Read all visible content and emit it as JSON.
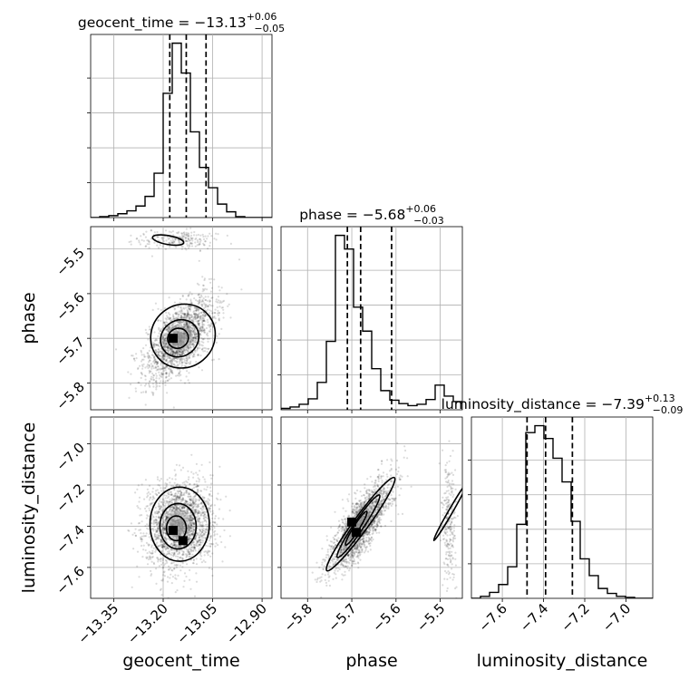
{
  "chart_data": {
    "type": "corner",
    "parameters": [
      {
        "key": "geocent_time",
        "label": "geocent_time",
        "title": {
          "prefix": "geocent_time = ",
          "median": "−13.13",
          "plus": "+0.06",
          "minus": "−0.05"
        },
        "ticks": [
          -13.35,
          -13.2,
          -13.05,
          -12.9
        ],
        "tick_labels": [
          "−13.35",
          "−13.20",
          "−13.05",
          "−12.90"
        ],
        "range": [
          -13.42,
          -12.87
        ],
        "quantiles": [
          -13.18,
          -13.13,
          -13.07
        ],
        "hist_bins": [
          -13.42,
          -13.3925,
          -13.365,
          -13.3375,
          -13.31,
          -13.2825,
          -13.255,
          -13.2275,
          -13.2,
          -13.1725,
          -13.145,
          -13.1175,
          -13.09,
          -13.0625,
          -13.035,
          -13.0075,
          -12.98,
          -12.9525,
          -12.925,
          -12.8975,
          -12.87
        ],
        "hist_counts": [
          0,
          1,
          2,
          4,
          7,
          12,
          22,
          46,
          129,
          181,
          150,
          89,
          52,
          31,
          14,
          6,
          1,
          0,
          0,
          0
        ]
      },
      {
        "key": "phase",
        "label": "phase",
        "title": {
          "prefix": "phase = ",
          "median": "−5.68",
          "plus": "+0.06",
          "minus": "−0.03"
        },
        "ticks": [
          -5.8,
          -5.7,
          -5.6,
          -5.5
        ],
        "tick_labels": [
          "−5.8",
          "−5.7",
          "−5.6",
          "−5.5"
        ],
        "range": [
          -5.86,
          -5.45
        ],
        "quantiles": [
          -5.71,
          -5.68,
          -5.61
        ],
        "hist_bins": [
          -5.86,
          -5.8395,
          -5.819,
          -5.7985,
          -5.778,
          -5.7575,
          -5.737,
          -5.7165,
          -5.696,
          -5.6755,
          -5.655,
          -5.6345,
          -5.614,
          -5.5935,
          -5.573,
          -5.5525,
          -5.532,
          -5.5115,
          -5.491,
          -5.4705,
          -5.45
        ],
        "hist_counts": [
          2,
          4,
          8,
          16,
          40,
          100,
          255,
          235,
          150,
          115,
          60,
          28,
          14,
          9,
          6,
          8,
          15,
          36,
          20,
          12
        ]
      },
      {
        "key": "luminosity_distance",
        "label": "luminosity_distance",
        "title": {
          "prefix": "luminosity_distance = ",
          "median": "−7.39",
          "plus": "+0.13",
          "minus": "−0.09"
        },
        "ticks": [
          -7.6,
          -7.4,
          -7.2,
          -7.0
        ],
        "tick_labels": [
          "−7.6",
          "−7.4",
          "−7.2",
          "−7.0"
        ],
        "y_ticks": [
          -7.6,
          -7.4,
          -7.2,
          -7.0
        ],
        "y_tick_labels": [
          "−7.6",
          "−7.4",
          "−7.2",
          "−7.0"
        ],
        "range": [
          -7.75,
          -6.87
        ],
        "quantiles": [
          -7.48,
          -7.39,
          -7.26
        ],
        "hist_bins": [
          -7.75,
          -7.706,
          -7.662,
          -7.618,
          -7.574,
          -7.53,
          -7.486,
          -7.442,
          -7.398,
          -7.354,
          -7.31,
          -7.266,
          -7.222,
          -7.178,
          -7.134,
          -7.09,
          -7.046,
          -7.002,
          -6.958,
          -6.914,
          -6.87
        ],
        "hist_counts": [
          0,
          2,
          6,
          14,
          32,
          75,
          168,
          175,
          162,
          142,
          118,
          78,
          40,
          23,
          10,
          5,
          2,
          1,
          0,
          0
        ]
      }
    ],
    "panels_2d": [
      {
        "x": "geocent_time",
        "y": "phase",
        "modes": [
          {
            "mean": [
              -13.15,
              -5.7
            ],
            "sd": [
              0.05,
              0.045
            ],
            "rho": 0.6,
            "weight": 0.9
          },
          {
            "mean": [
              -13.15,
              -5.48
            ],
            "sd": [
              0.06,
              0.01
            ],
            "rho": 0.0,
            "weight": 0.1
          }
        ],
        "contours": [
          {
            "level": "inner",
            "center": [
              -13.155,
              -5.7
            ],
            "rx": 0.032,
            "ry": 0.022,
            "angle_deg": 32
          },
          {
            "level": "middle",
            "center": [
              -13.15,
              -5.7
            ],
            "rx": 0.06,
            "ry": 0.04,
            "angle_deg": 36
          },
          {
            "level": "outer",
            "center": [
              -13.14,
              -5.695
            ],
            "rx": 0.1,
            "ry": 0.07,
            "angle_deg": 40
          },
          {
            "level": "outer",
            "center": [
              -13.185,
              -5.48
            ],
            "rx": 0.048,
            "ry": 0.01,
            "angle_deg": -10
          }
        ],
        "peak_cells": [
          [
            -13.17,
            -5.7
          ]
        ]
      },
      {
        "x": "geocent_time",
        "y": "luminosity_distance",
        "modes": [
          {
            "mean": [
              -13.15,
              -7.39
            ],
            "sd": [
              0.05,
              0.1
            ],
            "rho": 0.1,
            "weight": 1.0
          }
        ],
        "contours": [
          {
            "level": "inner",
            "center": [
              -13.16,
              -7.41
            ],
            "rx": 0.03,
            "ry": 0.06,
            "angle_deg": 0
          },
          {
            "level": "middle",
            "center": [
              -13.155,
              -7.4
            ],
            "rx": 0.055,
            "ry": 0.11,
            "angle_deg": 0
          },
          {
            "level": "outer",
            "center": [
              -13.15,
              -7.39
            ],
            "rx": 0.09,
            "ry": 0.18,
            "angle_deg": 0
          }
        ],
        "peak_cells": [
          [
            -13.17,
            -7.42
          ],
          [
            -13.14,
            -7.47
          ]
        ]
      },
      {
        "x": "phase",
        "y": "luminosity_distance",
        "modes": [
          {
            "mean": [
              -5.68,
              -7.39
            ],
            "sd": [
              0.035,
              0.11
            ],
            "rho": 0.8,
            "weight": 0.88
          },
          {
            "mean": [
              -5.48,
              -7.4
            ],
            "sd": [
              0.008,
              0.16
            ],
            "rho": 0.0,
            "weight": 0.12
          }
        ],
        "contours": [
          {
            "level": "inner",
            "center": [
              -5.69,
              -7.41
            ],
            "rx": 0.045,
            "ry": 0.014,
            "angle_deg": 58
          },
          {
            "level": "middle",
            "center": [
              -5.685,
              -7.4
            ],
            "rx": 0.085,
            "ry": 0.024,
            "angle_deg": 56
          },
          {
            "level": "outer",
            "center": [
              -5.68,
              -7.39
            ],
            "rx": 0.13,
            "ry": 0.036,
            "angle_deg": 54
          },
          {
            "level": "outer",
            "center": [
              -5.477,
              -7.33
            ],
            "rx": 0.075,
            "ry": 0.01,
            "angle_deg": 60
          }
        ],
        "peak_cells": [
          [
            -5.7,
            -7.38
          ],
          [
            -5.69,
            -7.43
          ]
        ]
      }
    ],
    "grid": true
  }
}
